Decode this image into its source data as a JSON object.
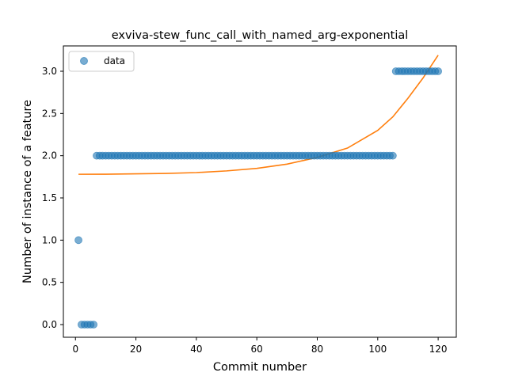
{
  "chart_data": {
    "type": "scatter",
    "title": "exviva-stew_func_call_with_named_arg-exponential",
    "xlabel": "Commit number",
    "ylabel": "Number of instance of a feature",
    "xlim": [
      -4,
      126
    ],
    "ylim": [
      -0.15,
      3.3
    ],
    "xticks": [
      0,
      20,
      40,
      60,
      80,
      100,
      120
    ],
    "xtick_labels": [
      "0",
      "20",
      "40",
      "60",
      "80",
      "100",
      "120"
    ],
    "yticks": [
      0.0,
      0.5,
      1.0,
      1.5,
      2.0,
      2.5,
      3.0
    ],
    "ytick_labels": [
      "0.0",
      "0.5",
      "1.0",
      "1.5",
      "2.0",
      "2.5",
      "3.0"
    ],
    "grid": false,
    "legend": {
      "position": "top-left",
      "entries": [
        "data"
      ]
    },
    "colors": {
      "data": "#1f77b4",
      "fit": "#ff7f0e"
    },
    "series": [
      {
        "name": "data",
        "kind": "scatter",
        "segments": [
          {
            "x_from": 1,
            "x_to": 1,
            "y": 1
          },
          {
            "x_from": 2,
            "x_to": 6,
            "y": 0
          },
          {
            "x_from": 7,
            "x_to": 105,
            "y": 2
          },
          {
            "x_from": 106,
            "x_to": 120,
            "y": 3
          }
        ]
      },
      {
        "kind": "line",
        "x": [
          1,
          10,
          20,
          30,
          40,
          50,
          60,
          70,
          80,
          90,
          100,
          105,
          110,
          115,
          120
        ],
        "y": [
          1.78,
          1.781,
          1.785,
          1.79,
          1.8,
          1.82,
          1.85,
          1.9,
          1.98,
          2.09,
          2.3,
          2.46,
          2.68,
          2.92,
          3.19
        ]
      }
    ]
  }
}
